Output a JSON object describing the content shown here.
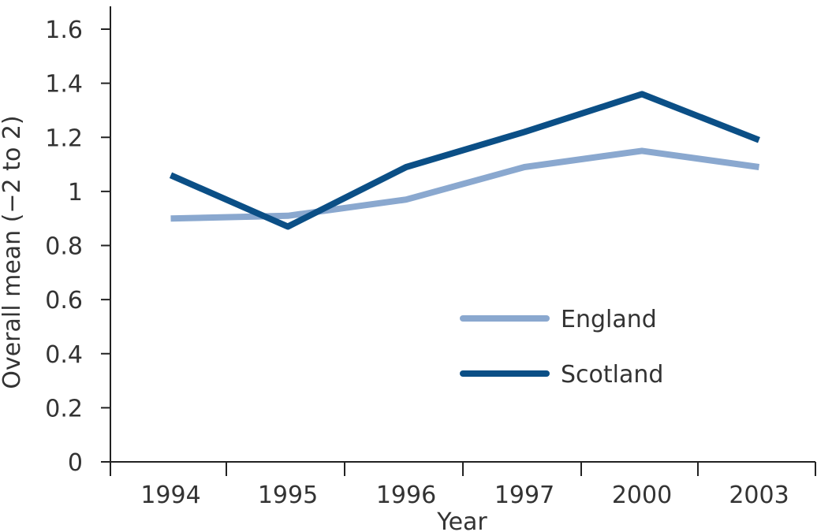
{
  "chart_data": {
    "type": "line",
    "title": "",
    "xlabel": "Year",
    "ylabel": "Overall mean (−2 to 2)",
    "categories": [
      "1994",
      "1995",
      "1996",
      "1997",
      "2000",
      "2003"
    ],
    "ylim": [
      0,
      1.6
    ],
    "yticks": [
      "0",
      "0.2",
      "0.4",
      "0.6",
      "0.8",
      "1",
      "1.2",
      "1.4",
      "1.6"
    ],
    "grid": false,
    "legend_position": "center-right",
    "series": [
      {
        "name": "England",
        "color": "#8aa8cf",
        "values": [
          0.9,
          0.91,
          0.97,
          1.09,
          1.15,
          1.09
        ]
      },
      {
        "name": "Scotland",
        "color": "#0b4f86",
        "values": [
          1.06,
          0.87,
          1.09,
          1.22,
          1.36,
          1.19
        ]
      }
    ]
  }
}
